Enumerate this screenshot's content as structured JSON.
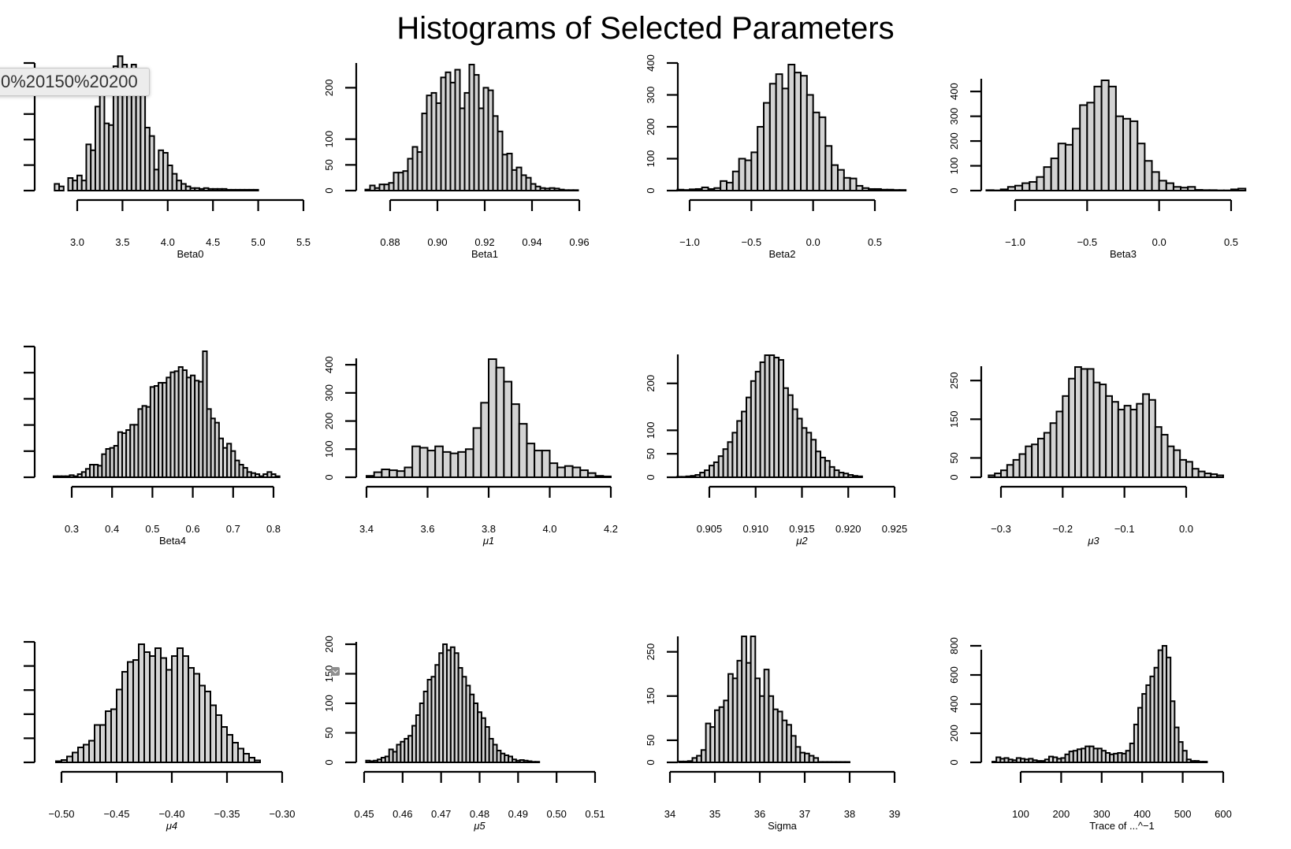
{
  "title": "Histograms of Selected Parameters",
  "tooltip_text": "0%20150%20200",
  "colors": {
    "bar_fill": "#d3d3d3",
    "bar_stroke": "#000000"
  },
  "chart_data": [
    {
      "type": "bar",
      "xlabel": "Beta0",
      "title": "",
      "xticks": [
        3.0,
        3.5,
        4.0,
        4.5,
        5.0,
        5.5
      ],
      "xtick_labels": [
        "3.0",
        "3.5",
        "4.0",
        "4.5",
        "5.0",
        "5.5"
      ],
      "yticks": [],
      "ytick_labels": [],
      "bin_start": 2.75,
      "bin_width": 0.05,
      "counts": [
        8,
        5,
        0,
        15,
        12,
        18,
        12,
        55,
        48,
        100,
        125,
        80,
        78,
        148,
        160,
        150,
        140,
        150,
        115,
        118,
        75,
        65,
        25,
        48,
        45,
        30,
        20,
        12,
        8,
        5,
        3,
        3,
        2,
        3,
        2,
        2,
        2,
        2,
        1,
        1,
        1,
        1,
        1,
        1,
        1
      ]
    },
    {
      "type": "bar",
      "xlabel": "Beta1",
      "title": "",
      "xticks": [
        0.88,
        0.9,
        0.92,
        0.94,
        0.96
      ],
      "xtick_labels": [
        "0.88",
        "0.90",
        "0.92",
        "0.94",
        "0.96"
      ],
      "yticks": [
        0,
        50,
        100,
        200
      ],
      "ytick_labels": [
        "0",
        "50",
        "100",
        "200"
      ],
      "bin_start": 0.8695,
      "bin_width": 0.002,
      "counts": [
        2,
        10,
        5,
        12,
        12,
        15,
        35,
        35,
        38,
        62,
        85,
        75,
        150,
        185,
        190,
        170,
        220,
        230,
        210,
        235,
        160,
        190,
        245,
        225,
        160,
        200,
        195,
        145,
        115,
        70,
        72,
        40,
        45,
        30,
        25,
        13,
        8,
        5,
        4,
        5,
        4,
        2,
        1,
        1,
        1
      ]
    },
    {
      "type": "bar",
      "xlabel": "Beta2",
      "title": "",
      "xticks": [
        -1.0,
        -0.5,
        0.0,
        0.5
      ],
      "xtick_labels": [
        "−1.0",
        "−0.5",
        "0.0",
        "0.5"
      ],
      "yticks": [
        0,
        100,
        200,
        300,
        400
      ],
      "ytick_labels": [
        "0",
        "100",
        "200",
        "300",
        "400"
      ],
      "bin_start": -1.1,
      "bin_width": 0.05,
      "counts": [
        3,
        2,
        4,
        5,
        10,
        5,
        8,
        30,
        25,
        60,
        100,
        95,
        120,
        200,
        275,
        335,
        365,
        320,
        395,
        370,
        360,
        300,
        245,
        230,
        140,
        80,
        65,
        40,
        38,
        15,
        8,
        5,
        5,
        3,
        3,
        2,
        2
      ]
    },
    {
      "type": "bar",
      "xlabel": "Beta3",
      "title": "",
      "xticks": [
        -1.0,
        -0.5,
        0.0,
        0.5
      ],
      "xtick_labels": [
        "−1.0",
        "−0.5",
        "0.0",
        "0.5"
      ],
      "yticks": [
        0,
        100,
        200,
        300,
        400
      ],
      "ytick_labels": [
        "0",
        "100",
        "200",
        "300",
        "400"
      ],
      "bin_start": -1.2,
      "bin_width": 0.05,
      "counts": [
        2,
        1,
        5,
        15,
        20,
        30,
        35,
        55,
        95,
        130,
        190,
        185,
        250,
        345,
        355,
        420,
        445,
        420,
        300,
        290,
        280,
        190,
        120,
        75,
        40,
        30,
        15,
        12,
        15,
        3,
        2,
        2,
        1,
        1,
        5,
        8
      ]
    },
    {
      "type": "bar",
      "xlabel": "Beta4",
      "title": "",
      "xticks": [
        0.3,
        0.4,
        0.5,
        0.6,
        0.7,
        0.8
      ],
      "xtick_labels": [
        "0.3",
        "0.4",
        "0.5",
        "0.6",
        "0.7",
        "0.8"
      ],
      "yticks": [],
      "ytick_labels": [],
      "bin_start": 0.255,
      "bin_width": 0.01,
      "counts": [
        1,
        1,
        1,
        1,
        2,
        1,
        3,
        5,
        8,
        12,
        12,
        11,
        22,
        27,
        28,
        30,
        43,
        42,
        45,
        50,
        50,
        65,
        68,
        67,
        86,
        87,
        90,
        90,
        95,
        100,
        101,
        105,
        102,
        95,
        97,
        92,
        91,
        120,
        65,
        56,
        52,
        37,
        28,
        32,
        25,
        16,
        12,
        9,
        5,
        4,
        3,
        1,
        3,
        5,
        3,
        1
      ]
    },
    {
      "type": "bar",
      "xlabel": "μ1",
      "title": "",
      "xticks": [
        3.4,
        3.6,
        3.8,
        4.0,
        4.2
      ],
      "xtick_labels": [
        "3.4",
        "3.6",
        "3.8",
        "4.0",
        "4.2"
      ],
      "yticks": [
        0,
        100,
        200,
        300,
        400
      ],
      "ytick_labels": [
        "0",
        "100",
        "200",
        "300",
        "400"
      ],
      "bin_start": 3.4,
      "bin_width": 0.025,
      "counts": [
        5,
        18,
        28,
        25,
        22,
        35,
        110,
        105,
        95,
        110,
        90,
        85,
        90,
        100,
        175,
        265,
        420,
        390,
        340,
        260,
        190,
        120,
        95,
        95,
        50,
        35,
        40,
        35,
        25,
        15,
        5,
        3
      ]
    },
    {
      "type": "bar",
      "xlabel": "μ2",
      "title": "",
      "xticks": [
        0.905,
        0.91,
        0.915,
        0.92,
        0.925
      ],
      "xtick_labels": [
        "0.905",
        "0.910",
        "0.915",
        "0.920",
        "0.925"
      ],
      "yticks": [
        0,
        50,
        100,
        200
      ],
      "ytick_labels": [
        "0",
        "50",
        "100",
        "200"
      ],
      "bin_start": 0.9015,
      "bin_width": 0.0005,
      "counts": [
        1,
        1,
        2,
        3,
        5,
        10,
        15,
        25,
        32,
        45,
        60,
        75,
        95,
        120,
        140,
        170,
        205,
        225,
        245,
        260,
        260,
        255,
        250,
        190,
        175,
        145,
        125,
        105,
        95,
        80,
        55,
        42,
        35,
        22,
        15,
        10,
        8,
        5,
        3,
        2
      ]
    },
    {
      "type": "bar",
      "xlabel": "μ3",
      "title": "",
      "xticks": [
        -0.3,
        -0.2,
        -0.1,
        0.0
      ],
      "xtick_labels": [
        "−0.3",
        "−0.2",
        "−0.1",
        "0.0"
      ],
      "yticks": [
        0,
        50,
        150,
        250
      ],
      "ytick_labels": [
        "0",
        "50",
        "150",
        "250"
      ],
      "bin_start": -0.32,
      "bin_width": 0.01,
      "counts": [
        5,
        10,
        18,
        32,
        45,
        60,
        80,
        85,
        100,
        115,
        140,
        170,
        210,
        255,
        285,
        280,
        280,
        245,
        240,
        210,
        195,
        175,
        185,
        175,
        190,
        215,
        200,
        130,
        110,
        80,
        70,
        45,
        40,
        22,
        15,
        10,
        8,
        5
      ]
    },
    {
      "type": "bar",
      "xlabel": "μ4",
      "title": "",
      "xticks": [
        -0.5,
        -0.45,
        -0.4,
        -0.35,
        -0.3
      ],
      "xtick_labels": [
        "−0.50",
        "−0.45",
        "−0.40",
        "−0.35",
        "−0.30"
      ],
      "yticks": [],
      "ytick_labels": [],
      "bin_start": -0.505,
      "bin_width": 0.005,
      "counts": [
        3,
        6,
        15,
        25,
        38,
        45,
        55,
        95,
        95,
        130,
        135,
        185,
        230,
        255,
        260,
        300,
        280,
        270,
        290,
        265,
        235,
        270,
        290,
        270,
        240,
        225,
        195,
        180,
        145,
        120,
        90,
        70,
        50,
        35,
        22,
        12,
        5
      ]
    },
    {
      "type": "bar",
      "xlabel": "μ5",
      "title": "",
      "xticks": [
        0.45,
        0.46,
        0.47,
        0.48,
        0.49,
        0.5,
        0.51
      ],
      "xtick_labels": [
        "0.45",
        "0.46",
        "0.47",
        "0.48",
        "0.49",
        "0.50",
        "0.51"
      ],
      "yticks": [
        0,
        50,
        100,
        150,
        200
      ],
      "ytick_labels": [
        "0",
        "50",
        "100",
        "150",
        "200"
      ],
      "bin_start": 0.4505,
      "bin_width": 0.001,
      "counts": [
        3,
        2,
        3,
        5,
        8,
        10,
        22,
        18,
        30,
        35,
        40,
        45,
        62,
        80,
        100,
        120,
        140,
        145,
        165,
        185,
        200,
        190,
        195,
        185,
        160,
        145,
        130,
        115,
        100,
        85,
        75,
        60,
        40,
        30,
        20,
        15,
        12,
        10,
        5,
        3,
        4,
        3,
        2,
        1,
        1
      ]
    },
    {
      "type": "bar",
      "xlabel": "Sigma",
      "title": "",
      "xticks": [
        34,
        35,
        36,
        37,
        38,
        39
      ],
      "xtick_labels": [
        "34",
        "35",
        "36",
        "37",
        "38",
        "39"
      ],
      "yticks": [
        0,
        50,
        150,
        250
      ],
      "ytick_labels": [
        "0",
        "50",
        "150",
        "250"
      ],
      "bin_start": 34.2,
      "bin_width": 0.1,
      "counts": [
        2,
        2,
        3,
        10,
        15,
        28,
        88,
        80,
        118,
        125,
        140,
        200,
        190,
        230,
        285,
        225,
        285,
        190,
        150,
        210,
        150,
        120,
        115,
        95,
        85,
        60,
        35,
        22,
        20,
        15,
        10,
        1,
        1,
        1,
        1,
        1,
        1,
        1
      ]
    },
    {
      "type": "bar",
      "xlabel": "Trace of ...^−1",
      "title": "",
      "xticks": [
        100,
        200,
        300,
        400,
        500,
        600
      ],
      "xtick_labels": [
        "100",
        "200",
        "300",
        "400",
        "500",
        "600"
      ],
      "yticks": [
        0,
        200,
        400,
        600,
        800
      ],
      "ytick_labels": [
        "0",
        "200",
        "400",
        "600",
        "800"
      ],
      "bin_start": 30,
      "bin_width": 10,
      "counts": [
        5,
        35,
        25,
        30,
        20,
        15,
        30,
        25,
        20,
        25,
        15,
        10,
        10,
        20,
        40,
        35,
        25,
        30,
        55,
        75,
        80,
        90,
        95,
        110,
        110,
        95,
        95,
        80,
        65,
        55,
        60,
        65,
        60,
        80,
        130,
        260,
        375,
        470,
        530,
        590,
        650,
        770,
        800,
        720,
        420,
        240,
        140,
        80,
        20,
        10,
        10,
        5,
        5
      ]
    }
  ]
}
